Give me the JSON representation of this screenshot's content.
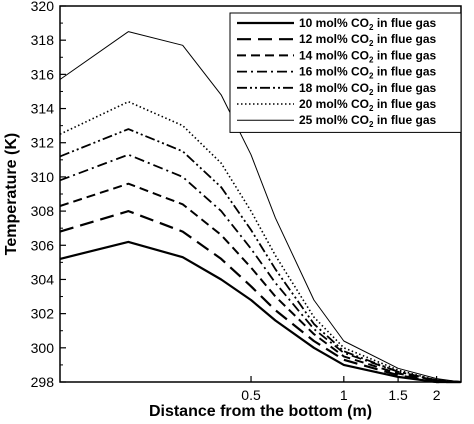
{
  "chart_data": {
    "type": "line",
    "title": "",
    "xlabel": "Distance from the bottom (m)",
    "ylabel": "Temperature (K)",
    "x_scale": "log",
    "xlim": [
      0.12,
      2.4
    ],
    "ylim": [
      298,
      320
    ],
    "x_ticks": [
      {
        "value": 0.5,
        "label": "0.5"
      },
      {
        "value": 1,
        "label": "1"
      },
      {
        "value": 1.5,
        "label": "1.5"
      },
      {
        "value": 2,
        "label": "2"
      }
    ],
    "y_ticks": [
      298,
      300,
      302,
      304,
      306,
      308,
      310,
      312,
      314,
      316,
      318,
      320
    ],
    "grid": false,
    "legend_position": "top-right",
    "x": [
      0.12,
      0.2,
      0.3,
      0.4,
      0.5,
      0.6,
      0.8,
      1.0,
      1.5,
      2.0,
      2.4
    ],
    "series": [
      {
        "name": "10 mol% CO2 in flue gas",
        "legend_prefix": "10 mol% CO",
        "legend_sub": "2",
        "legend_suffix": " in flue gas",
        "style": "solid",
        "width": 2.2,
        "values": [
          305.2,
          306.2,
          305.3,
          304.0,
          302.8,
          301.6,
          300.0,
          299.0,
          298.3,
          298.0,
          298.0
        ]
      },
      {
        "name": "12 mol% CO2 in flue gas",
        "legend_prefix": "12 mol% CO",
        "legend_sub": "2",
        "legend_suffix": " in flue gas",
        "style": "longdash",
        "width": 2.2,
        "values": [
          306.8,
          308.0,
          306.8,
          305.2,
          303.6,
          302.2,
          300.4,
          299.3,
          298.4,
          298.0,
          298.0
        ]
      },
      {
        "name": "14 mol% CO2 in flue gas",
        "legend_prefix": "14 mol% CO",
        "legend_sub": "2",
        "legend_suffix": " in flue gas",
        "style": "dash",
        "width": 2.0,
        "values": [
          308.3,
          309.6,
          308.4,
          306.6,
          304.7,
          303.0,
          300.8,
          299.5,
          298.5,
          298.1,
          298.0
        ]
      },
      {
        "name": "16 mol% CO2 in flue gas",
        "legend_prefix": "16 mol% CO",
        "legend_sub": "2",
        "legend_suffix": " in flue gas",
        "style": "dashdot",
        "width": 1.8,
        "values": [
          309.8,
          311.3,
          310.0,
          308.0,
          305.8,
          303.8,
          301.1,
          299.7,
          298.6,
          298.1,
          298.0
        ]
      },
      {
        "name": "18 mol% CO2 in flue gas",
        "legend_prefix": "18 mol% CO",
        "legend_sub": "2",
        "legend_suffix": " in flue gas",
        "style": "dashdotdot",
        "width": 1.8,
        "values": [
          311.2,
          312.8,
          311.5,
          309.4,
          306.9,
          304.6,
          301.4,
          299.8,
          298.6,
          298.1,
          298.0
        ]
      },
      {
        "name": "20 mol% CO2 in flue gas",
        "legend_prefix": "20 mol% CO",
        "legend_sub": "2",
        "legend_suffix": " in flue gas",
        "style": "dotted",
        "width": 1.6,
        "values": [
          312.5,
          314.4,
          313.0,
          310.8,
          308.0,
          305.4,
          301.8,
          300.0,
          298.7,
          298.1,
          298.0
        ]
      },
      {
        "name": "25 mol% CO2 in flue gas",
        "legend_prefix": "25 mol% CO",
        "legend_sub": "2",
        "legend_suffix": " in flue gas",
        "style": "thin",
        "width": 1.0,
        "values": [
          315.7,
          318.5,
          317.7,
          314.8,
          311.3,
          307.6,
          302.8,
          300.4,
          298.8,
          298.2,
          298.0
        ]
      }
    ]
  }
}
